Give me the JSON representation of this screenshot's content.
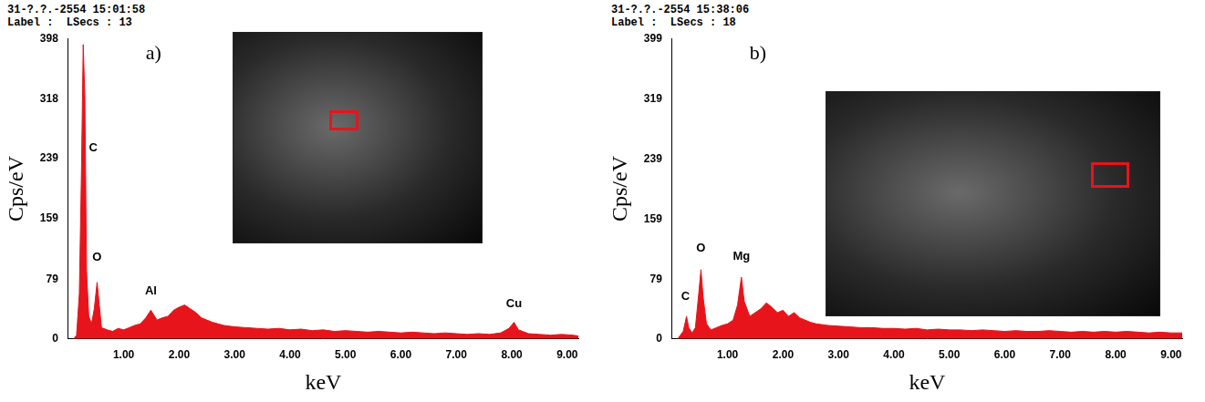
{
  "chart_data": [
    {
      "type": "area",
      "title": "31-?.?.-2554 15:01:58",
      "subtitle": "Label :  LSecs : 13",
      "panel_label": "a)",
      "xlabel": "keV",
      "ylabel": "Cps/eV",
      "color": "#e8141b",
      "grid": false,
      "xlim": [
        0,
        9.2
      ],
      "xticks": [
        {
          "value": 1,
          "label": "1.00"
        },
        {
          "value": 2,
          "label": "2.00"
        },
        {
          "value": 3,
          "label": "3.00"
        },
        {
          "value": 4,
          "label": "4.00"
        },
        {
          "value": 5,
          "label": "5.00"
        },
        {
          "value": 6,
          "label": "6.00"
        },
        {
          "value": 7,
          "label": "7.00"
        },
        {
          "value": 8,
          "label": "8.00"
        },
        {
          "value": 9,
          "label": "9.00"
        }
      ],
      "ylim": [
        0,
        398
      ],
      "yticks": [
        0,
        79,
        159,
        239,
        318,
        398
      ],
      "x": [
        0.1,
        0.15,
        0.2,
        0.24,
        0.27,
        0.3,
        0.33,
        0.37,
        0.42,
        0.47,
        0.52,
        0.56,
        0.6,
        0.7,
        0.8,
        0.9,
        1.0,
        1.1,
        1.2,
        1.3,
        1.4,
        1.49,
        1.6,
        1.7,
        1.8,
        1.9,
        2.0,
        2.1,
        2.2,
        2.3,
        2.4,
        2.5,
        2.6,
        2.7,
        2.8,
        3.0,
        3.2,
        3.4,
        3.6,
        3.8,
        4.0,
        4.2,
        4.4,
        4.6,
        4.8,
        5.0,
        5.2,
        5.4,
        5.6,
        5.8,
        6.0,
        6.2,
        6.4,
        6.6,
        6.8,
        7.0,
        7.2,
        7.4,
        7.6,
        7.8,
        7.95,
        8.04,
        8.12,
        8.3,
        8.5,
        8.7,
        8.9,
        9.1,
        9.2
      ],
      "values": [
        0,
        5,
        60,
        230,
        390,
        320,
        90,
        30,
        20,
        40,
        75,
        45,
        15,
        12,
        10,
        14,
        12,
        15,
        18,
        20,
        28,
        38,
        25,
        28,
        30,
        38,
        42,
        45,
        40,
        35,
        28,
        25,
        22,
        20,
        18,
        16,
        15,
        14,
        13,
        14,
        12,
        13,
        11,
        12,
        10,
        11,
        10,
        9,
        10,
        9,
        8,
        9,
        8,
        7,
        8,
        7,
        6,
        7,
        6,
        8,
        14,
        22,
        12,
        7,
        6,
        5,
        6,
        5,
        4
      ],
      "annotations": [
        {
          "text": "C",
          "x": 0.45,
          "y": 245
        },
        {
          "text": "O",
          "x": 0.52,
          "y": 100
        },
        {
          "text": "Al",
          "x": 1.49,
          "y": 55
        },
        {
          "text": "Cu",
          "x": 8.04,
          "y": 38
        }
      ]
    },
    {
      "type": "area",
      "title": "31-?.?.-2554 15:38:06",
      "subtitle": "Label :  LSecs : 18",
      "panel_label": "b)",
      "xlabel": "keV",
      "ylabel": "Cps/eV",
      "color": "#e8141b",
      "grid": false,
      "xlim": [
        0,
        9.2
      ],
      "xticks": [
        {
          "value": 1,
          "label": "1.00"
        },
        {
          "value": 2,
          "label": "2.00"
        },
        {
          "value": 3,
          "label": "3.00"
        },
        {
          "value": 4,
          "label": "4.00"
        },
        {
          "value": 5,
          "label": "5.00"
        },
        {
          "value": 6,
          "label": "6.00"
        },
        {
          "value": 7,
          "label": "7.00"
        },
        {
          "value": 8,
          "label": "8.00"
        },
        {
          "value": 9,
          "label": "9.00"
        }
      ],
      "ylim": [
        0,
        399
      ],
      "yticks": [
        0,
        79,
        159,
        239,
        319,
        399
      ],
      "x": [
        0.1,
        0.2,
        0.26,
        0.3,
        0.36,
        0.42,
        0.48,
        0.52,
        0.56,
        0.62,
        0.7,
        0.8,
        0.9,
        1.0,
        1.1,
        1.18,
        1.25,
        1.3,
        1.4,
        1.5,
        1.6,
        1.7,
        1.8,
        1.9,
        2.0,
        2.1,
        2.2,
        2.3,
        2.4,
        2.5,
        2.6,
        2.8,
        3.0,
        3.2,
        3.4,
        3.6,
        3.8,
        4.0,
        4.2,
        4.4,
        4.6,
        4.8,
        5.0,
        5.2,
        5.4,
        5.6,
        5.8,
        6.0,
        6.2,
        6.4,
        6.6,
        6.8,
        7.0,
        7.2,
        7.4,
        7.6,
        7.8,
        8.0,
        8.2,
        8.4,
        8.6,
        8.8,
        9.0,
        9.2
      ],
      "values": [
        0,
        10,
        30,
        15,
        8,
        15,
        60,
        92,
        55,
        20,
        12,
        15,
        18,
        20,
        25,
        45,
        82,
        50,
        30,
        35,
        40,
        48,
        42,
        35,
        38,
        30,
        35,
        28,
        25,
        22,
        20,
        18,
        17,
        16,
        15,
        15,
        14,
        14,
        13,
        14,
        12,
        13,
        12,
        12,
        11,
        12,
        11,
        10,
        11,
        10,
        10,
        11,
        10,
        9,
        10,
        9,
        10,
        9,
        10,
        9,
        8,
        9,
        8,
        8
      ],
      "annotations": [
        {
          "text": "C",
          "x": 0.24,
          "y": 48
        },
        {
          "text": "O",
          "x": 0.52,
          "y": 112
        },
        {
          "text": "Mg",
          "x": 1.25,
          "y": 102
        }
      ]
    }
  ]
}
